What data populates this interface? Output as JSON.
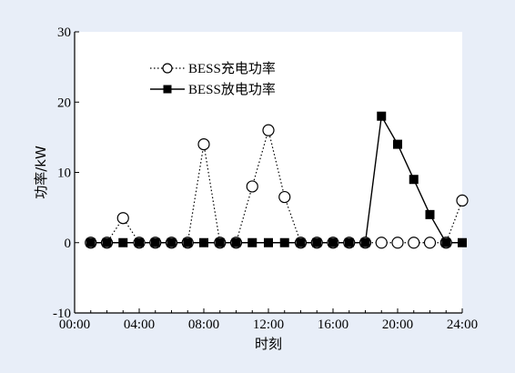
{
  "chart_data": {
    "type": "line",
    "xlabel": "时刻",
    "ylabel": "功率/kW",
    "x_tick_labels": [
      "00:00",
      "04:00",
      "08:00",
      "12:00",
      "16:00",
      "20:00",
      "24:00"
    ],
    "x_tick_hours": [
      0,
      4,
      8,
      12,
      16,
      20,
      24
    ],
    "xlim": [
      0,
      24
    ],
    "y_ticks": [
      -10,
      0,
      10,
      20,
      30
    ],
    "ylim": [
      -10,
      30
    ],
    "grid": false,
    "legend_position": "top-left",
    "x": [
      1,
      2,
      3,
      4,
      5,
      6,
      7,
      8,
      9,
      10,
      11,
      12,
      13,
      14,
      15,
      16,
      17,
      18,
      19,
      20,
      21,
      22,
      23,
      24
    ],
    "series": [
      {
        "name": "BESS充电功率",
        "style": "dotted-line-open-circle",
        "color": "#000000",
        "values": [
          0,
          0,
          3.5,
          0,
          0,
          0,
          0,
          14,
          0,
          0,
          8,
          16,
          6.5,
          0,
          0,
          0,
          0,
          0,
          0,
          0,
          0,
          0,
          0,
          6
        ]
      },
      {
        "name": "BESS放电功率",
        "style": "solid-line-filled-square",
        "color": "#000000",
        "values": [
          0,
          0,
          0,
          0,
          0,
          0,
          0,
          0,
          0,
          0,
          0,
          0,
          0,
          0,
          0,
          0,
          0,
          0,
          18,
          14,
          9,
          4,
          0,
          0
        ]
      }
    ]
  }
}
